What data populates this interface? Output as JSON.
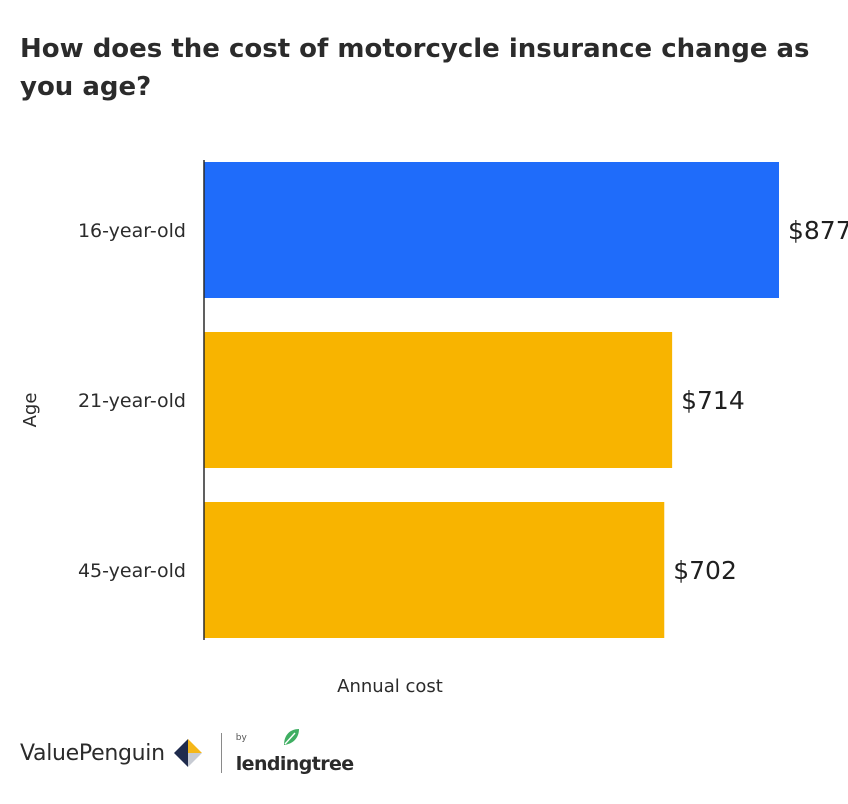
{
  "title": "How does the cost of motorcycle insurance change as you age?",
  "chart_data": {
    "type": "bar",
    "orientation": "horizontal",
    "categories": [
      "16-year-old",
      "21-year-old",
      "45-year-old"
    ],
    "values": [
      877,
      714,
      702
    ],
    "value_labels": [
      "$877",
      "$714",
      "$702"
    ],
    "bar_colors": [
      "#1f6cfa",
      "#f8b400",
      "#f8b400"
    ],
    "xlabel": "Annual cost",
    "ylabel": "Age",
    "xlim": [
      0,
      877
    ],
    "grid": false,
    "legend": "none"
  },
  "footer": {
    "brand": "ValuePenguin",
    "by": "by",
    "partner": "lendingtree"
  },
  "colors": {
    "highlight_bar": "#1f6cfa",
    "bar": "#f8b400",
    "text": "#2b2b2b",
    "logo_yellow": "#f5b719",
    "logo_navy": "#1f2b4d",
    "leaf_green": "#3fae62"
  }
}
